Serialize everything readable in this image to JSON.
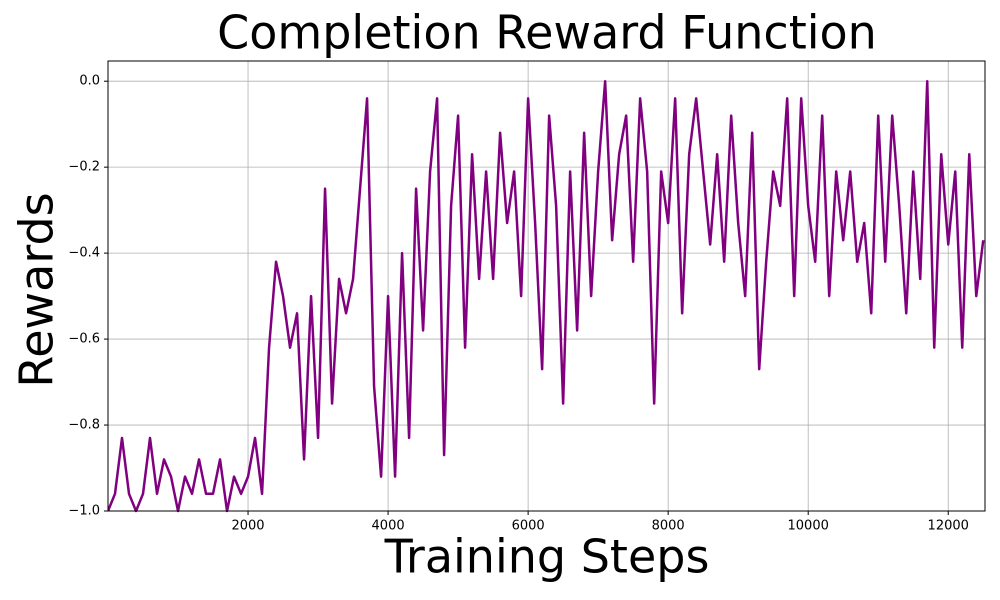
{
  "chart_data": {
    "type": "line",
    "title": "Completion Reward Function",
    "xlabel": "Training Steps",
    "ylabel": "Rewards",
    "x": [
      0,
      100,
      200,
      300,
      400,
      500,
      600,
      700,
      800,
      900,
      1000,
      1100,
      1200,
      1300,
      1400,
      1500,
      1600,
      1700,
      1800,
      1900,
      2000,
      2100,
      2200,
      2300,
      2400,
      2500,
      2600,
      2700,
      2800,
      2900,
      3000,
      3100,
      3200,
      3300,
      3400,
      3500,
      3600,
      3700,
      3800,
      3900,
      4000,
      4100,
      4200,
      4300,
      4400,
      4500,
      4600,
      4700,
      4800,
      4900,
      5000,
      5100,
      5200,
      5300,
      5400,
      5500,
      5600,
      5700,
      5800,
      5900,
      6000,
      6100,
      6200,
      6300,
      6400,
      6500,
      6600,
      6700,
      6800,
      6900,
      7000,
      7100,
      7200,
      7300,
      7400,
      7500,
      7600,
      7700,
      7800,
      7900,
      8000,
      8100,
      8200,
      8300,
      8400,
      8500,
      8600,
      8700,
      8800,
      8900,
      9000,
      9100,
      9200,
      9300,
      9400,
      9500,
      9600,
      9700,
      9800,
      9900,
      10000,
      10100,
      10200,
      10300,
      10400,
      10500,
      10600,
      10700,
      10800,
      10900,
      11000,
      11100,
      11200,
      11300,
      11400,
      11500,
      11600,
      11700,
      11800,
      11900,
      12000,
      12100,
      12200,
      12300,
      12400,
      12500
    ],
    "series": [
      {
        "name": "Rewards",
        "color": "#800080",
        "values": [
          -1,
          -0.96,
          -0.83,
          -0.96,
          -1,
          -0.96,
          -0.83,
          -0.96,
          -0.88,
          -0.92,
          -1,
          -0.92,
          -0.96,
          -0.88,
          -0.96,
          -0.96,
          -0.88,
          -1,
          -0.92,
          -0.96,
          -0.92,
          -0.83,
          -0.96,
          -0.62,
          -0.42,
          -0.5,
          -0.62,
          -0.54,
          -0.88,
          -0.5,
          -0.83,
          -0.25,
          -0.75,
          -0.46,
          -0.54,
          -0.46,
          -0.25,
          -0.04,
          -0.71,
          -0.92,
          -0.5,
          -0.92,
          -0.4,
          -0.83,
          -0.25,
          -0.58,
          -0.21,
          -0.04,
          -0.87,
          -0.29,
          -0.08,
          -0.62,
          -0.17,
          -0.46,
          -0.21,
          -0.46,
          -0.12,
          -0.33,
          -0.21,
          -0.5,
          -0.04,
          -0.33,
          -0.67,
          -0.08,
          -0.29,
          -0.75,
          -0.21,
          -0.58,
          -0.12,
          -0.5,
          -0.21,
          0,
          -0.37,
          -0.17,
          -0.08,
          -0.42,
          -0.04,
          -0.21,
          -0.75,
          -0.21,
          -0.33,
          -0.04,
          -0.54,
          -0.17,
          -0.04,
          -0.21,
          -0.38,
          -0.17,
          -0.42,
          -0.08,
          -0.33,
          -0.5,
          -0.12,
          -0.67,
          -0.42,
          -0.21,
          -0.29,
          -0.04,
          -0.5,
          -0.04,
          -0.29,
          -0.42,
          -0.08,
          -0.5,
          -0.21,
          -0.37,
          -0.21,
          -0.42,
          -0.33,
          -0.54,
          -0.08,
          -0.42,
          -0.08,
          -0.29,
          -0.54,
          -0.21,
          -0.46,
          0,
          -0.62,
          -0.17,
          -0.38,
          -0.21,
          -0.62,
          -0.17,
          -0.5,
          -0.37
        ]
      }
    ],
    "xlim": [
      0,
      12525
    ],
    "ylim": [
      -1.0,
      0.047
    ],
    "xticks": [
      2000,
      4000,
      6000,
      8000,
      10000,
      12000
    ],
    "yticks": [
      {
        "value": -1.0,
        "label": "−1.0"
      },
      {
        "value": -0.8,
        "label": "−0.8"
      },
      {
        "value": -0.6,
        "label": "−0.6"
      },
      {
        "value": -0.4,
        "label": "−0.4"
      },
      {
        "value": -0.2,
        "label": "−0.2"
      },
      {
        "value": 0,
        "label": "0.0"
      }
    ],
    "grid": true
  }
}
